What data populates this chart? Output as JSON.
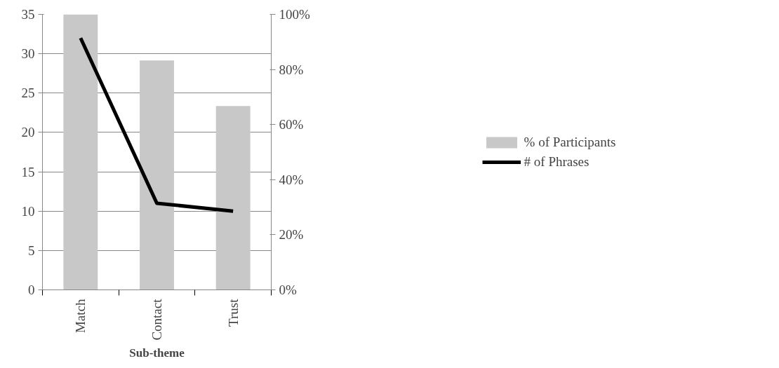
{
  "chart_data": {
    "type": "bar",
    "xlabel": "Sub-theme",
    "categories": [
      "Match",
      "Contact",
      "Trust"
    ],
    "series": [
      {
        "name": "% of Participants",
        "color": "#c8c8c8",
        "values": [
          100,
          83.3,
          66.7
        ],
        "axis": "y2"
      },
      {
        "name": "# of Phrases",
        "type": "line",
        "color": "#000000",
        "values": [
          32,
          11,
          10
        ]
      }
    ],
    "ylim": [
      0,
      35
    ],
    "yticks": [
      0,
      5,
      10,
      15,
      20,
      25,
      30,
      35
    ],
    "y2lim": [
      0,
      100
    ],
    "y2ticks": [
      {
        "value": 0,
        "label": "0%"
      },
      {
        "value": 20,
        "label": "20%"
      },
      {
        "value": 40,
        "label": "40%"
      },
      {
        "value": 60,
        "label": "60%"
      },
      {
        "value": 80,
        "label": "80%"
      },
      {
        "value": 100,
        "label": "100%"
      }
    ],
    "grid": "y",
    "legend": "right"
  }
}
